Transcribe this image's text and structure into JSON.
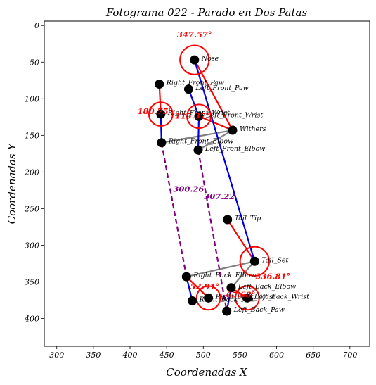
{
  "chart_data": {
    "type": "scatter",
    "title": "Fotograma 022 - Parado en Dos Patas",
    "xlabel": "Coordenadas X",
    "ylabel": "Coordenadas Y",
    "xlim": [
      283,
      727
    ],
    "ylim": [
      438,
      -6
    ],
    "y_inverted": true,
    "grid": false,
    "x_ticks": [
      300,
      350,
      400,
      450,
      500,
      550,
      600,
      650,
      700
    ],
    "y_ticks": [
      0,
      50,
      100,
      150,
      200,
      250,
      300,
      350,
      400
    ],
    "keypoints": [
      {
        "name": "Nose",
        "x": 488,
        "y": 47
      },
      {
        "name": "Left_Front_Paw",
        "x": 480,
        "y": 87
      },
      {
        "name": "Right_Front_Paw",
        "x": 440,
        "y": 80
      },
      {
        "name": "Left_Front_Wrist",
        "x": 494,
        "y": 124
      },
      {
        "name": "Right_Front_Wrist",
        "x": 442,
        "y": 121
      },
      {
        "name": "Withers",
        "x": 540,
        "y": 143
      },
      {
        "name": "Right_Front_Elbow",
        "x": 443,
        "y": 160
      },
      {
        "name": "Left_Front_Elbow",
        "x": 493,
        "y": 170
      },
      {
        "name": "Tail_Tip",
        "x": 533,
        "y": 265
      },
      {
        "name": "Tail_Set",
        "x": 570,
        "y": 322
      },
      {
        "name": "Right_Back_Elbow",
        "x": 477,
        "y": 343
      },
      {
        "name": "Left_Back_Elbow",
        "x": 538,
        "y": 358
      },
      {
        "name": "Left_Back_Wrist",
        "x": 560,
        "y": 372
      },
      {
        "name": "Right_Back_Wrist",
        "x": 507,
        "y": 372
      },
      {
        "name": "Right_Back_Paw",
        "x": 485,
        "y": 376
      },
      {
        "name": "Left_Back_Paw",
        "x": 532,
        "y": 390
      }
    ],
    "segments": [
      {
        "from": "Withers",
        "to": "Right_Front_Elbow",
        "color": "#808080",
        "style": "solid"
      },
      {
        "from": "Withers",
        "to": "Left_Front_Elbow",
        "color": "#808080",
        "style": "solid"
      },
      {
        "from": "Tail_Set",
        "to": "Right_Back_Elbow",
        "color": "#808080",
        "style": "solid"
      },
      {
        "from": "Tail_Set",
        "to": "Left_Back_Elbow",
        "color": "#808080",
        "style": "solid"
      },
      {
        "from": "Nose",
        "to": "Withers",
        "color": "#ff0000",
        "style": "solid"
      },
      {
        "from": "Withers",
        "to": "Left_Front_Wrist",
        "color": "#ff0000",
        "style": "solid"
      },
      {
        "from": "Right_Front_Paw",
        "to": "Right_Front_Wrist",
        "color": "#ff0000",
        "style": "solid"
      },
      {
        "from": "Tail_Tip",
        "to": "Tail_Set",
        "color": "#ff0000",
        "style": "solid"
      },
      {
        "from": "Right_Back_Elbow",
        "to": "Right_Back_Wrist",
        "color": "#ff0000",
        "style": "solid"
      },
      {
        "from": "Left_Back_Elbow",
        "to": "Left_Back_Wrist",
        "color": "#ff0000",
        "style": "solid"
      },
      {
        "from": "Nose",
        "to": "Tail_Set",
        "color": "#0000dd",
        "style": "solid"
      },
      {
        "from": "Right_Front_Wrist",
        "to": "Right_Front_Elbow",
        "color": "#0000dd",
        "style": "solid"
      },
      {
        "from": "Left_Front_Paw",
        "to": "Left_Front_Wrist",
        "color": "#0000dd",
        "style": "solid"
      },
      {
        "from": "Left_Front_Wrist",
        "to": "Left_Front_Elbow",
        "color": "#0000dd",
        "style": "solid"
      },
      {
        "from": "Right_Back_Elbow",
        "to": "Right_Back_Paw",
        "color": "#0000dd",
        "style": "solid"
      },
      {
        "from": "Left_Back_Elbow",
        "to": "Left_Back_Paw",
        "color": "#0000dd",
        "style": "solid"
      },
      {
        "from": "Right_Front_Elbow",
        "to": "Right_Back_Elbow",
        "color": "#800080",
        "style": "dashed"
      },
      {
        "from": "Left_Front_Elbow",
        "to": "Left_Back_Paw",
        "color": "#800080",
        "style": "dashed"
      }
    ],
    "angle_circles": [
      {
        "at": "Nose",
        "radius_units": 11
      },
      {
        "at": "Right_Front_Wrist",
        "radius_units": 9
      },
      {
        "at": "Left_Front_Wrist",
        "radius_units": 9
      },
      {
        "at": "Tail_Set",
        "radius_units": 11
      },
      {
        "at": "Right_Back_Wrist",
        "radius_units": 9
      },
      {
        "at": "Left_Back_Wrist",
        "radius_units": 9
      }
    ],
    "angle_labels": [
      {
        "text": "347.57°",
        "x": 488,
        "y": 16,
        "color": "#ff0000"
      },
      {
        "text": "180.75°",
        "x": 434,
        "y": 121,
        "color": "#ff0000"
      },
      {
        "text": "115.37°",
        "x": 485,
        "y": 127,
        "color": "#ff0000"
      },
      {
        "text": "300.26",
        "x": 480,
        "y": 227,
        "color": "#800080"
      },
      {
        "text": "307.22",
        "x": 522,
        "y": 237,
        "color": "#800080"
      },
      {
        "text": "336.81°",
        "x": 595,
        "y": 346,
        "color": "#ff0000"
      },
      {
        "text": "52.91°",
        "x": 502,
        "y": 360,
        "color": "#ff0000"
      },
      {
        "text": "65.68°",
        "x": 551,
        "y": 371,
        "color": "#ff0000"
      }
    ]
  }
}
